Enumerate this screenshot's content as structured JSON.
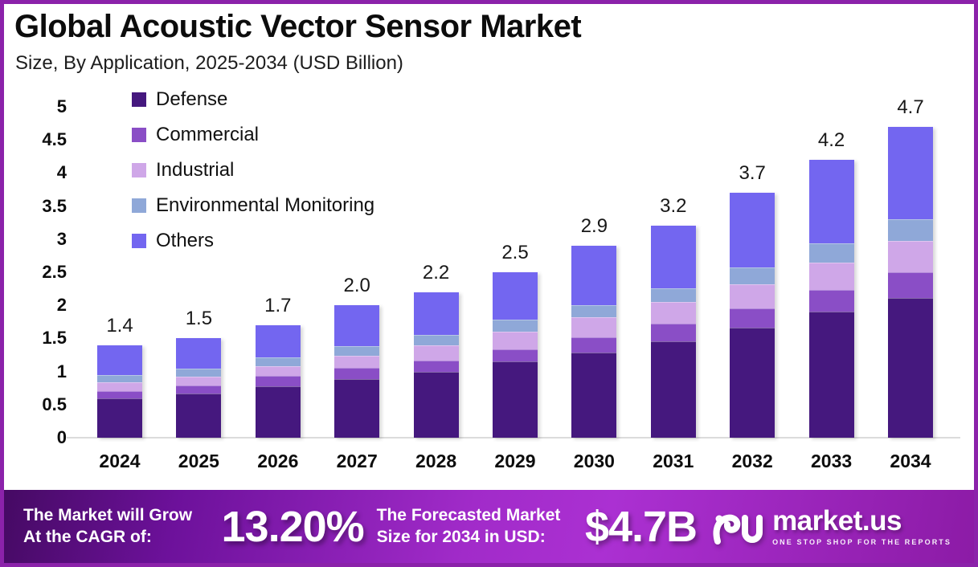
{
  "header": {
    "title": "Global Acoustic Vector Sensor Market",
    "subtitle": "Size, By Application, 2025-2034 (USD Billion)"
  },
  "chart_data": {
    "type": "bar",
    "stacked": true,
    "title": "Global Acoustic Vector Sensor Market Size, By Application, 2025-2034 (USD Billion)",
    "categories": [
      "2024",
      "2025",
      "2026",
      "2027",
      "2028",
      "2029",
      "2030",
      "2031",
      "2032",
      "2033",
      "2034"
    ],
    "series": [
      {
        "name": "Defense",
        "color": "#45187E",
        "values": [
          0.6,
          0.67,
          0.78,
          0.89,
          1.0,
          1.15,
          1.29,
          1.46,
          1.66,
          1.9,
          2.11
        ]
      },
      {
        "name": "Commercial",
        "color": "#8A4EC6",
        "values": [
          0.1,
          0.12,
          0.15,
          0.16,
          0.17,
          0.19,
          0.23,
          0.26,
          0.29,
          0.33,
          0.39
        ]
      },
      {
        "name": "Industrial",
        "color": "#CFA7E8",
        "values": [
          0.14,
          0.13,
          0.15,
          0.19,
          0.23,
          0.26,
          0.3,
          0.33,
          0.37,
          0.42,
          0.47
        ]
      },
      {
        "name": "Environmental Monitoring",
        "color": "#8FA8D8",
        "values": [
          0.11,
          0.12,
          0.13,
          0.14,
          0.15,
          0.19,
          0.18,
          0.21,
          0.25,
          0.29,
          0.33
        ]
      },
      {
        "name": "Others",
        "color": "#7366F0",
        "values": [
          0.45,
          0.46,
          0.49,
          0.62,
          0.65,
          0.71,
          0.9,
          0.94,
          1.13,
          1.26,
          1.4
        ]
      }
    ],
    "totals": [
      1.4,
      1.5,
      1.7,
      2.0,
      2.2,
      2.5,
      2.9,
      3.2,
      3.7,
      4.2,
      4.7
    ],
    "total_labels": [
      "1.4",
      "1.5",
      "1.7",
      "2.0",
      "2.2",
      "2.5",
      "2.9",
      "3.2",
      "3.7",
      "4.2",
      "4.7"
    ],
    "xlabel": "",
    "ylabel": "",
    "ylim": [
      0,
      5
    ],
    "y_ticks": [
      "0",
      "0.5",
      "1",
      "1.5",
      "2",
      "2.5",
      "3",
      "3.5",
      "4",
      "4.5",
      "5"
    ],
    "grid": false,
    "legend_position": "top-left-inside"
  },
  "footer": {
    "cagr_label": "The Market will Grow At the CAGR of:",
    "cagr_value": "13.20%",
    "forecast_label": "The Forecasted Market Size for 2034 in USD:",
    "forecast_value": "$4.7B",
    "logo_text": "market.us",
    "logo_tagline": "ONE STOP SHOP FOR THE REPORTS"
  },
  "colors": {
    "frame_border": "#8B22AA",
    "baseline": "#DCDCDC",
    "text": "#0D0D0D",
    "banner_gradient_start": "#450A63",
    "banner_gradient_mid": "#A12BC9",
    "banner_gradient_end": "#8C1BA6"
  }
}
